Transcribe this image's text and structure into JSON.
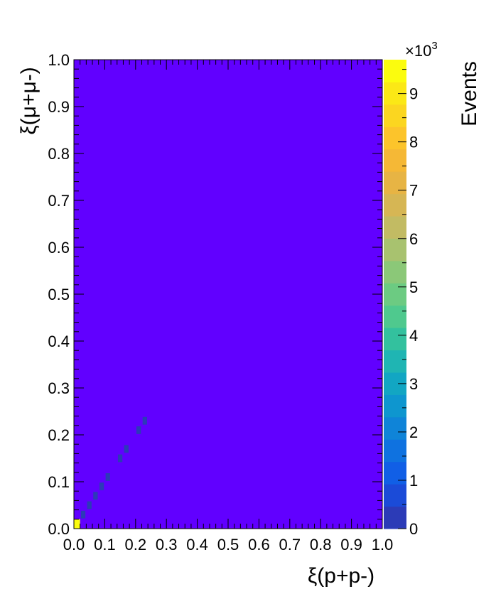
{
  "chart_data": {
    "type": "heatmap",
    "title": "",
    "xlabel": "ξ(p+p-)",
    "ylabel": "ξ(μ+μ-)",
    "xlim": [
      0.0,
      1.0
    ],
    "ylim": [
      0.0,
      1.0
    ],
    "x_ticks": [
      "0.0",
      "0.1",
      "0.2",
      "0.3",
      "0.4",
      "0.5",
      "0.6",
      "0.7",
      "0.8",
      "0.9",
      "1.0"
    ],
    "y_ticks": [
      "0.0",
      "0.1",
      "0.2",
      "0.3",
      "0.4",
      "0.5",
      "0.6",
      "0.7",
      "0.8",
      "0.9",
      "1.0"
    ],
    "bin_width": 0.02,
    "background_color": "#6100ff",
    "cells": [
      {
        "x": 0.01,
        "y": 0.01,
        "value": 9700
      },
      {
        "x": 0.03,
        "y": 0.03,
        "value": 300
      },
      {
        "x": 0.05,
        "y": 0.05,
        "value": 300
      },
      {
        "x": 0.07,
        "y": 0.07,
        "value": 300
      },
      {
        "x": 0.09,
        "y": 0.09,
        "value": 300
      },
      {
        "x": 0.11,
        "y": 0.11,
        "value": 300
      },
      {
        "x": 0.15,
        "y": 0.15,
        "value": 300
      },
      {
        "x": 0.17,
        "y": 0.17,
        "value": 300
      },
      {
        "x": 0.21,
        "y": 0.21,
        "value": 300
      },
      {
        "x": 0.23,
        "y": 0.23,
        "value": 300
      }
    ],
    "colorbar": {
      "label": "Events",
      "multiplier": "×10",
      "exponent": "3",
      "min": 0,
      "max": 9.7,
      "ticks": [
        "0",
        "1",
        "2",
        "3",
        "4",
        "5",
        "6",
        "7",
        "8",
        "9"
      ],
      "colors": [
        "#2c3bb7",
        "#1b4bd8",
        "#115fe6",
        "#0f72e0",
        "#0f84d8",
        "#0e96cf",
        "#12a6c3",
        "#1fb5b3",
        "#33c19e",
        "#4fc98e",
        "#6ccb82",
        "#8bc878",
        "#a8c26f",
        "#c2bb63",
        "#d6b654",
        "#e7b444",
        "#f5b836",
        "#fcc42b",
        "#fbd620",
        "#fbe816",
        "#fbfc0e"
      ]
    }
  }
}
